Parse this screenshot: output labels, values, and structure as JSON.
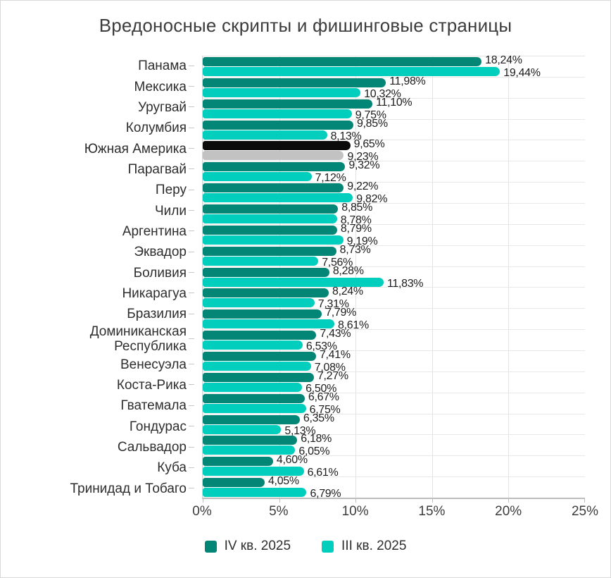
{
  "title": "Вредоносные скрипты и фишинговые страницы",
  "colors": {
    "series_q4": "#048677",
    "series_q3": "#02cebd",
    "highlight_q4": "#0b0b0b",
    "highlight_q3": "#c2c2c2",
    "gridline": "#e3e3e3",
    "axis": "#bdbdbd",
    "text": "#2e2e2e"
  },
  "legend": {
    "items": [
      {
        "label": "IV кв. 2025",
        "color": "#048677"
      },
      {
        "label": "III кв. 2025",
        "color": "#02cebd"
      }
    ]
  },
  "chart_data": {
    "type": "bar",
    "orientation": "horizontal",
    "title": "Вредоносные скрипты и фишинговые страницы",
    "xlabel": "",
    "ylabel": "",
    "unit": "%",
    "xlim": [
      0,
      25
    ],
    "x_tick_values": [
      0,
      5,
      10,
      15,
      20,
      25
    ],
    "x_tick_labels": [
      "0%",
      "5%",
      "10%",
      "15%",
      "20%",
      "25%"
    ],
    "grid": true,
    "legend_position": "bottom",
    "series_names": [
      "IV кв. 2025",
      "III кв. 2025"
    ],
    "categories": [
      "Панама",
      "Мексика",
      "Уругвай",
      "Колумбия",
      "Южная Америка",
      "Парагвай",
      "Перу",
      "Чили",
      "Аргентина",
      "Эквадор",
      "Боливия",
      "Никарагуа",
      "Бразилия",
      "Доминиканская Республика",
      "Венесуэла",
      "Коста-Рика",
      "Гватемала",
      "Гондурас",
      "Сальвадор",
      "Куба",
      "Тринидад и Тобаго"
    ],
    "rows": [
      {
        "label": "Панама",
        "q4": 18.24,
        "q4_label": "18,24%",
        "q3": 19.44,
        "q3_label": "19,44%"
      },
      {
        "label": "Мексика",
        "q4": 11.98,
        "q4_label": "11,98%",
        "q3": 10.32,
        "q3_label": "10,32%"
      },
      {
        "label": "Уругвай",
        "q4": 11.1,
        "q4_label": "11,10%",
        "q3": 9.75,
        "q3_label": "9,75%"
      },
      {
        "label": "Колумбия",
        "q4": 9.85,
        "q4_label": "9,85%",
        "q3": 8.13,
        "q3_label": "8,13%"
      },
      {
        "label": "Южная Америка",
        "q4": 9.65,
        "q4_label": "9,65%",
        "q3": 9.23,
        "q3_label": "9,23%",
        "highlight": true
      },
      {
        "label": "Парагвай",
        "q4": 9.32,
        "q4_label": "9,32%",
        "q3": 7.12,
        "q3_label": "7,12%"
      },
      {
        "label": "Перу",
        "q4": 9.22,
        "q4_label": "9,22%",
        "q3": 9.82,
        "q3_label": "9,82%"
      },
      {
        "label": "Чили",
        "q4": 8.85,
        "q4_label": "8,85%",
        "q3": 8.78,
        "q3_label": "8,78%"
      },
      {
        "label": "Аргентина",
        "q4": 8.79,
        "q4_label": "8,79%",
        "q3": 9.19,
        "q3_label": "9,19%"
      },
      {
        "label": "Эквадор",
        "q4": 8.73,
        "q4_label": "8,73%",
        "q3": 7.56,
        "q3_label": "7,56%"
      },
      {
        "label": "Боливия",
        "q4": 8.28,
        "q4_label": "8,28%",
        "q3": 11.83,
        "q3_label": "11,83%"
      },
      {
        "label": "Никарагуа",
        "q4": 8.24,
        "q4_label": "8,24%",
        "q3": 7.31,
        "q3_label": "7,31%"
      },
      {
        "label": "Бразилия",
        "q4": 7.79,
        "q4_label": "7,79%",
        "q3": 8.61,
        "q3_label": "8,61%"
      },
      {
        "label": "Доминиканская Республика",
        "q4": 7.43,
        "q4_label": "7,43%",
        "q3": 6.53,
        "q3_label": "6,53%"
      },
      {
        "label": "Венесуэла",
        "q4": 7.41,
        "q4_label": "7,41%",
        "q3": 7.08,
        "q3_label": "7,08%"
      },
      {
        "label": "Коста-Рика",
        "q4": 7.27,
        "q4_label": "7,27%",
        "q3": 6.5,
        "q3_label": "6,50%"
      },
      {
        "label": "Гватемала",
        "q4": 6.67,
        "q4_label": "6,67%",
        "q3": 6.75,
        "q3_label": "6,75%"
      },
      {
        "label": "Гондурас",
        "q4": 6.35,
        "q4_label": "6,35%",
        "q3": 5.13,
        "q3_label": "5,13%"
      },
      {
        "label": "Сальвадор",
        "q4": 6.18,
        "q4_label": "6,18%",
        "q3": 6.05,
        "q3_label": "6,05%"
      },
      {
        "label": "Куба",
        "q4": 4.6,
        "q4_label": "4,60%",
        "q3": 6.61,
        "q3_label": "6,61%"
      },
      {
        "label": "Тринидад и Тобаго",
        "q4": 4.05,
        "q4_label": "4,05%",
        "q3": 6.79,
        "q3_label": "6,79%"
      }
    ]
  }
}
